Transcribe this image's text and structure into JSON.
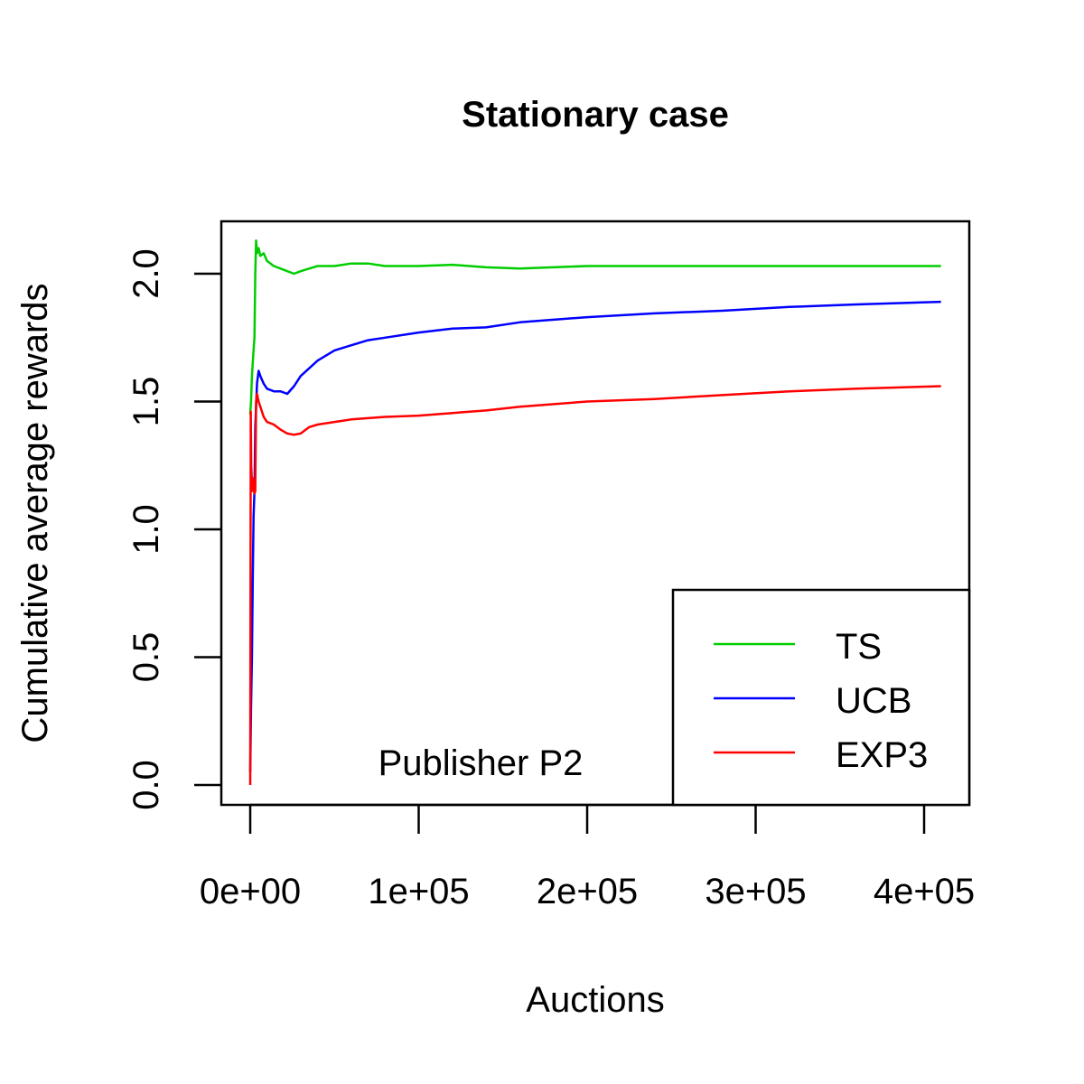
{
  "chart_data": {
    "type": "line",
    "title": "Stationary case",
    "xlabel": "Auctions",
    "ylabel": "Cumulative average rewards",
    "annotation": "Publisher P2",
    "xlim": [
      -17000,
      427000
    ],
    "ylim": [
      -0.08,
      2.2
    ],
    "x_ticks": [
      0,
      100000,
      200000,
      300000,
      400000
    ],
    "x_tick_labels": [
      "0e+00",
      "1e+05",
      "2e+05",
      "3e+05",
      "4e+05"
    ],
    "y_ticks": [
      0.0,
      0.5,
      1.0,
      1.5,
      2.0
    ],
    "y_tick_labels": [
      "0.0",
      "0.5",
      "1.0",
      "1.5",
      "2.0"
    ],
    "grid": false,
    "legend_position": "bottomright",
    "series": [
      {
        "name": "TS",
        "color": "#00CD00",
        "x": [
          0,
          500,
          1000,
          1500,
          2000,
          2500,
          3000,
          3500,
          4000,
          5000,
          6000,
          8000,
          10000,
          14000,
          18000,
          22000,
          26000,
          30000,
          35000,
          40000,
          50000,
          60000,
          70000,
          80000,
          100000,
          120000,
          140000,
          160000,
          200000,
          240000,
          280000,
          320000,
          360000,
          410000
        ],
        "y": [
          1.45,
          1.5,
          1.6,
          1.65,
          1.7,
          1.75,
          2.0,
          2.13,
          2.08,
          2.1,
          2.07,
          2.08,
          2.05,
          2.03,
          2.02,
          2.01,
          2.0,
          2.01,
          2.02,
          2.03,
          2.03,
          2.04,
          2.04,
          2.03,
          2.03,
          2.035,
          2.025,
          2.02,
          2.03,
          2.03,
          2.03,
          2.03,
          2.03,
          2.03
        ]
      },
      {
        "name": "UCB",
        "color": "#0000FF",
        "x": [
          0,
          500,
          1000,
          1500,
          2000,
          2500,
          3000,
          4000,
          5000,
          6000,
          8000,
          10000,
          14000,
          18000,
          22000,
          26000,
          30000,
          35000,
          40000,
          50000,
          60000,
          70000,
          80000,
          100000,
          120000,
          140000,
          160000,
          200000,
          240000,
          280000,
          320000,
          360000,
          410000
        ],
        "y": [
          0.05,
          0.3,
          0.5,
          0.8,
          1.05,
          1.15,
          1.4,
          1.57,
          1.62,
          1.6,
          1.57,
          1.55,
          1.54,
          1.54,
          1.53,
          1.56,
          1.6,
          1.63,
          1.66,
          1.7,
          1.72,
          1.74,
          1.75,
          1.77,
          1.785,
          1.79,
          1.81,
          1.83,
          1.845,
          1.855,
          1.87,
          1.88,
          1.89
        ]
      },
      {
        "name": "EXP3",
        "color": "#FF0000",
        "x": [
          0,
          300,
          600,
          900,
          1200,
          1500,
          2000,
          2500,
          3000,
          3500,
          4000,
          5000,
          6000,
          8000,
          10000,
          14000,
          18000,
          22000,
          26000,
          30000,
          35000,
          40000,
          50000,
          60000,
          70000,
          80000,
          100000,
          120000,
          140000,
          160000,
          200000,
          240000,
          280000,
          320000,
          360000,
          410000
        ],
        "y": [
          0.0,
          1.46,
          1.25,
          1.2,
          1.15,
          1.2,
          1.18,
          1.14,
          1.15,
          1.5,
          1.53,
          1.5,
          1.48,
          1.44,
          1.42,
          1.41,
          1.39,
          1.375,
          1.37,
          1.375,
          1.4,
          1.41,
          1.42,
          1.43,
          1.435,
          1.44,
          1.445,
          1.455,
          1.465,
          1.48,
          1.5,
          1.51,
          1.525,
          1.54,
          1.55,
          1.56
        ]
      }
    ]
  },
  "legend": {
    "entries": [
      {
        "label": "TS",
        "color": "#00CD00"
      },
      {
        "label": "UCB",
        "color": "#0000FF"
      },
      {
        "label": "EXP3",
        "color": "#FF0000"
      }
    ]
  }
}
